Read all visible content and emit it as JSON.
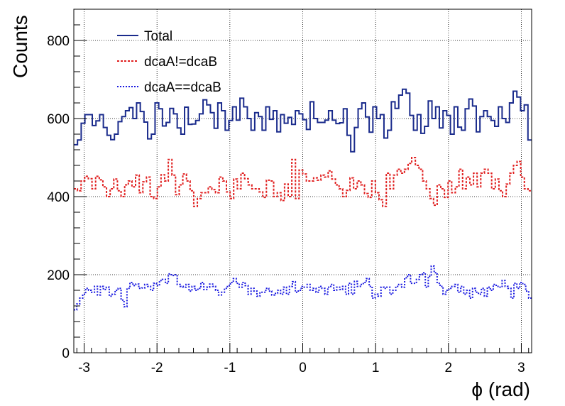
{
  "chart_data": {
    "type": "histogram",
    "xlabel": "ϕ (rad)",
    "ylabel": "Counts",
    "xlim": [
      -3.14159,
      3.14159
    ],
    "ylim": [
      0,
      880
    ],
    "grid": true,
    "legend_position": "top-left",
    "x_ticks": [
      -3,
      -2,
      -1,
      0,
      1,
      2,
      3
    ],
    "y_ticks": [
      0,
      200,
      400,
      600,
      800
    ],
    "x_tick_labels": [
      "-3",
      "-2",
      "-1",
      "0",
      "1",
      "2",
      "3"
    ],
    "y_tick_labels": [
      "0",
      "200",
      "400",
      "600",
      "800"
    ],
    "legend": [
      "Total",
      "dcaA!=dcaB",
      "dcaA==dcaB"
    ],
    "series": [
      {
        "name": "Total",
        "color": "#1a2b8c",
        "style": "solid",
        "values": [
          533,
          545,
          588,
          610,
          610,
          582,
          594,
          610,
          577,
          557,
          546,
          560,
          592,
          605,
          620,
          628,
          600,
          640,
          618,
          591,
          548,
          560,
          640,
          625,
          581,
          590,
          626,
          612,
          576,
          560,
          629,
          585,
          586,
          595,
          612,
          648,
          635,
          615,
          575,
          640,
          620,
          570,
          595,
          630,
          596,
          652,
          630,
          600,
          570,
          615,
          605,
          570,
          630,
          598,
          620,
          566,
          610,
          588,
          603,
          585,
          620,
          612,
          597,
          572,
          643,
          600,
          590,
          590,
          596,
          620,
          596,
          587,
          589,
          625,
          557,
          515,
          577,
          625,
          640,
          604,
          565,
          630,
          600,
          610,
          550,
          570,
          643,
          626,
          660,
          675,
          665,
          608,
          570,
          610,
          562,
          580,
          645,
          600,
          630,
          576,
          620,
          608,
          560,
          630,
          578,
          570,
          625,
          650,
          632,
          566,
          605,
          620,
          605,
          595,
          580,
          630,
          600,
          590,
          640,
          670,
          655,
          620,
          635,
          545
        ]
      },
      {
        "name": "dcaA!=dcaB",
        "color": "#e02020",
        "style": "dashed",
        "values": [
          420,
          415,
          440,
          452,
          446,
          420,
          452,
          443,
          425,
          400,
          420,
          445,
          415,
          400,
          430,
          440,
          425,
          455,
          410,
          438,
          450,
          400,
          395,
          425,
          456,
          440,
          495,
          455,
          405,
          430,
          458,
          440,
          415,
          375,
          395,
          410,
          410,
          425,
          418,
          410,
          450,
          440,
          412,
          395,
          445,
          420,
          460,
          446,
          430,
          420,
          420,
          412,
          398,
          442,
          440,
          400,
          410,
          390,
          432,
          400,
          495,
          395,
          468,
          458,
          440,
          440,
          448,
          442,
          455,
          450,
          466,
          445,
          430,
          420,
          400,
          416,
          448,
          420,
          440,
          430,
          408,
          398,
          440,
          410,
          392,
          375,
          460,
          420,
          455,
          470,
          460,
          470,
          485,
          500,
          480,
          470,
          440,
          420,
          395,
          378,
          430,
          420,
          398,
          440,
          410,
          425,
          470,
          420,
          450,
          430,
          460,
          425,
          460,
          470,
          460,
          420,
          445,
          415,
          400,
          432,
          460,
          480,
          490,
          450,
          420,
          415
        ]
      },
      {
        "name": "dcaA==dcaB",
        "color": "#1a1ae0",
        "style": "dotted",
        "values": [
          110,
          125,
          140,
          150,
          165,
          160,
          155,
          170,
          148,
          170,
          162,
          168,
          145,
          150,
          160,
          165,
          135,
          118,
          165,
          180,
          172,
          176,
          165,
          166,
          175,
          170,
          160,
          178,
          172,
          185,
          188,
          178,
          202,
          198,
          200,
          175,
          170,
          168,
          175,
          158,
          170,
          160,
          165,
          180,
          162,
          168,
          176,
          170,
          160,
          148,
          155,
          165,
          172,
          180,
          190,
          178,
          168,
          180,
          172,
          150,
          165,
          158,
          145,
          155,
          155,
          165,
          158,
          148,
          152,
          160,
          150,
          168,
          150,
          170,
          182,
          155,
          160,
          170,
          168,
          175,
          160,
          165,
          155,
          170,
          165,
          150,
          168,
          175,
          160,
          168,
          162,
          170,
          150,
          178,
          150,
          183,
          170,
          175,
          180,
          190,
          170,
          140,
          150,
          145,
          168,
          165,
          168,
          150,
          160,
          170,
          175,
          168,
          192,
          200,
          178,
          178,
          188,
          200,
          205,
          168,
          196,
          222,
          205,
          178,
          170,
          150,
          160,
          165,
          170,
          175,
          155,
          170,
          150,
          160,
          140,
          165,
          155,
          150,
          165,
          145,
          168,
          160,
          175,
          170,
          168,
          185,
          170,
          165,
          140,
          178,
          165,
          180,
          175,
          158,
          140
        ]
      }
    ]
  }
}
